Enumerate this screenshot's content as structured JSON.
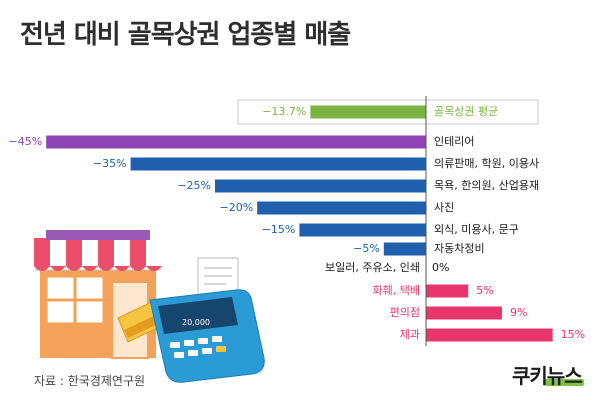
{
  "title": "전년 대비 골목상권 업종별 매출",
  "source": "자료 : 한국경제연구원",
  "logo": {
    "part1": "쿠키",
    "part2": "뉴스"
  },
  "colors": {
    "background": "#ffffff",
    "average": "#7cb342",
    "highlight": "#8e44b5",
    "negative": "#1f5fae",
    "positive": "#e8356e",
    "axis": "#555555",
    "text": "#1a1a1a"
  },
  "chart_data": {
    "type": "bar",
    "orientation": "horizontal",
    "title": "전년 대비 골목상권 업종별 매출",
    "xlim": [
      -45,
      15
    ],
    "unit": "%",
    "bars": [
      {
        "category": "골목상권 평균",
        "value": -13.7,
        "label": "−13.7%",
        "kind": "average"
      },
      {
        "category": "인테리어",
        "value": -45,
        "label": "−45%",
        "kind": "highlight"
      },
      {
        "category": "의류판매, 학원, 이용사",
        "value": -35,
        "label": "−35%",
        "kind": "negative"
      },
      {
        "category": "목욕, 한의원, 산업용재",
        "value": -25,
        "label": "−25%",
        "kind": "negative"
      },
      {
        "category": "사진",
        "value": -20,
        "label": "−20%",
        "kind": "negative"
      },
      {
        "category": "외식, 미용사, 문구",
        "value": -15,
        "label": "−15%",
        "kind": "negative"
      },
      {
        "category": "자동차정비",
        "value": -5,
        "label": "−5%",
        "kind": "negative"
      },
      {
        "category": "보일러, 주유소, 인쇄",
        "value": 0,
        "label": "0%",
        "kind": "zero"
      },
      {
        "category": "화훼, 택배",
        "value": 5,
        "label": "5%",
        "kind": "positive"
      },
      {
        "category": "편의점",
        "value": 9,
        "label": "9%",
        "kind": "positive"
      },
      {
        "category": "제과",
        "value": 15,
        "label": "15%",
        "kind": "positive"
      }
    ]
  }
}
